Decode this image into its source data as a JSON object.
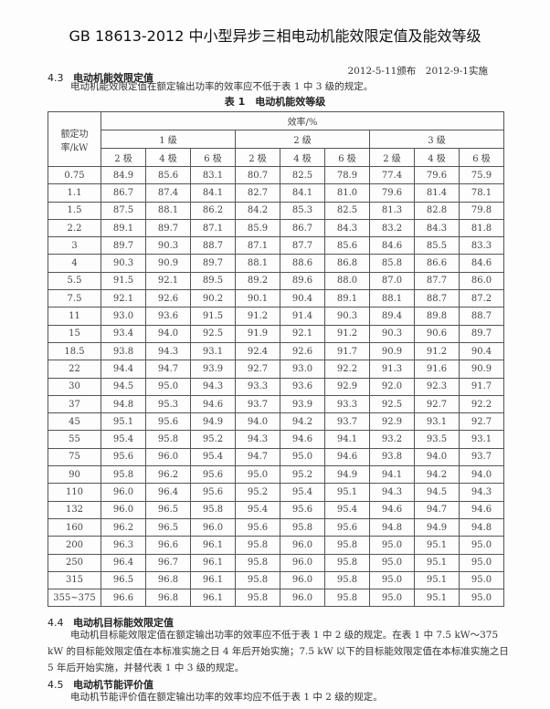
{
  "header": {
    "title": "GB 18613-2012 中小型异步三相电动机能效限定值及能效等级",
    "dates": "2012-5-11颁布　2012-9-1实施"
  },
  "section_4_3": {
    "number": "4.3",
    "title": "电动机能效限定值",
    "text": "电动机能效限定值在额定输出功率的效率应不低于表 1 中 3 级的规定。"
  },
  "table": {
    "caption": "表 1　电动机能效等级",
    "row_header": "额定功率/kW",
    "group_header": "效率/%",
    "grades": [
      "1 级",
      "2 级",
      "3 级"
    ],
    "poles": [
      "2 极",
      "4 极",
      "6 极",
      "2 极",
      "4 极",
      "6 极",
      "2 级",
      "4 极",
      "6 极"
    ],
    "rows": [
      [
        "0.75",
        "84.9",
        "85.6",
        "83.1",
        "80.7",
        "82.5",
        "78.9",
        "77.4",
        "79.6",
        "75.9"
      ],
      [
        "1.1",
        "86.7",
        "87.4",
        "84.1",
        "82.7",
        "84.1",
        "81.0",
        "79.6",
        "81.4",
        "78.1"
      ],
      [
        "1.5",
        "87.5",
        "88.1",
        "86.2",
        "84.2",
        "85.3",
        "82.5",
        "81.3",
        "82.8",
        "79.8"
      ],
      [
        "2.2",
        "89.1",
        "89.7",
        "87.1",
        "85.9",
        "86.7",
        "84.3",
        "83.2",
        "84.3",
        "81.8"
      ],
      [
        "3",
        "89.7",
        "90.3",
        "88.7",
        "87.1",
        "87.7",
        "85.6",
        "84.6",
        "85.5",
        "83.3"
      ],
      [
        "4",
        "90.3",
        "90.9",
        "89.7",
        "88.1",
        "88.6",
        "86.8",
        "85.8",
        "86.6",
        "84.6"
      ],
      [
        "5.5",
        "91.5",
        "92.1",
        "89.5",
        "89.2",
        "89.6",
        "88.0",
        "87.0",
        "87.7",
        "86.0"
      ],
      [
        "7.5",
        "92.1",
        "92.6",
        "90.2",
        "90.1",
        "90.4",
        "89.1",
        "88.1",
        "88.7",
        "87.2"
      ],
      [
        "11",
        "93.0",
        "93.6",
        "91.5",
        "91.2",
        "91.4",
        "90.3",
        "89.4",
        "89.8",
        "88.7"
      ],
      [
        "15",
        "93.4",
        "94.0",
        "92.5",
        "91.9",
        "92.1",
        "91.2",
        "90.3",
        "90.6",
        "89.7"
      ],
      [
        "18.5",
        "93.8",
        "94.3",
        "93.1",
        "92.4",
        "92.6",
        "91.7",
        "90.9",
        "91.2",
        "90.4"
      ],
      [
        "22",
        "94.4",
        "94.7",
        "93.9",
        "92.7",
        "93.0",
        "92.2",
        "91.3",
        "91.6",
        "90.9"
      ],
      [
        "30",
        "94.5",
        "95.0",
        "94.3",
        "93.3",
        "93.6",
        "92.9",
        "92.0",
        "92.3",
        "91.7"
      ],
      [
        "37",
        "94.8",
        "95.3",
        "94.6",
        "93.7",
        "93.9",
        "93.3",
        "92.5",
        "92.7",
        "92.2"
      ],
      [
        "45",
        "95.1",
        "95.6",
        "94.9",
        "94.0",
        "94.2",
        "93.7",
        "92.9",
        "93.1",
        "92.7"
      ],
      [
        "55",
        "95.4",
        "95.8",
        "95.2",
        "94.3",
        "94.6",
        "94.1",
        "93.2",
        "93.5",
        "93.1"
      ],
      [
        "75",
        "95.6",
        "96.0",
        "95.4",
        "94.7",
        "95.0",
        "94.6",
        "93.8",
        "94.0",
        "93.7"
      ],
      [
        "90",
        "95.8",
        "96.2",
        "95.6",
        "95.0",
        "95.2",
        "94.9",
        "94.1",
        "94.2",
        "94.0"
      ],
      [
        "110",
        "96.0",
        "96.4",
        "95.6",
        "95.2",
        "95.4",
        "95.1",
        "94.3",
        "94.5",
        "94.3"
      ],
      [
        "132",
        "96.0",
        "96.5",
        "95.8",
        "95.4",
        "95.6",
        "95.4",
        "94.6",
        "94.7",
        "94.6"
      ],
      [
        "160",
        "96.2",
        "96.5",
        "96.0",
        "95.6",
        "95.8",
        "95.6",
        "94.8",
        "94.9",
        "94.8"
      ],
      [
        "200",
        "96.3",
        "96.6",
        "96.1",
        "95.8",
        "96.0",
        "95.8",
        "95.0",
        "95.1",
        "95.0"
      ],
      [
        "250",
        "96.4",
        "96.7",
        "96.1",
        "95.8",
        "96.0",
        "95.8",
        "95.0",
        "95.1",
        "95.0"
      ],
      [
        "315",
        "96.5",
        "96.8",
        "96.1",
        "95.8",
        "96.0",
        "95.8",
        "95.0",
        "95.1",
        "95.0"
      ],
      [
        "355~375",
        "96.6",
        "96.8",
        "96.1",
        "95.8",
        "96.0",
        "95.8",
        "95.0",
        "95.1",
        "95.0"
      ]
    ]
  },
  "section_4_4": {
    "number": "4.4",
    "title": "电动机目标能效限定值",
    "text": "电动机目标能效限定值在额定输出功率的效率应不低于表 1 中 2 级的规定。在表 1 中 7.5 kW～375 kW 的目标能效限定值在本标准实施之日 4 年后开始实施；7.5 kW 以下的目标能效限定值在本标准实施之日 5 年后开始实施，并替代表 1 中 3 级的规定。"
  },
  "section_4_5": {
    "number": "4.5",
    "title": "电动机节能评价值",
    "text": "电动机节能评价值在额定输出功率的效率均应不低于表 1 中 2 级的规定。"
  }
}
